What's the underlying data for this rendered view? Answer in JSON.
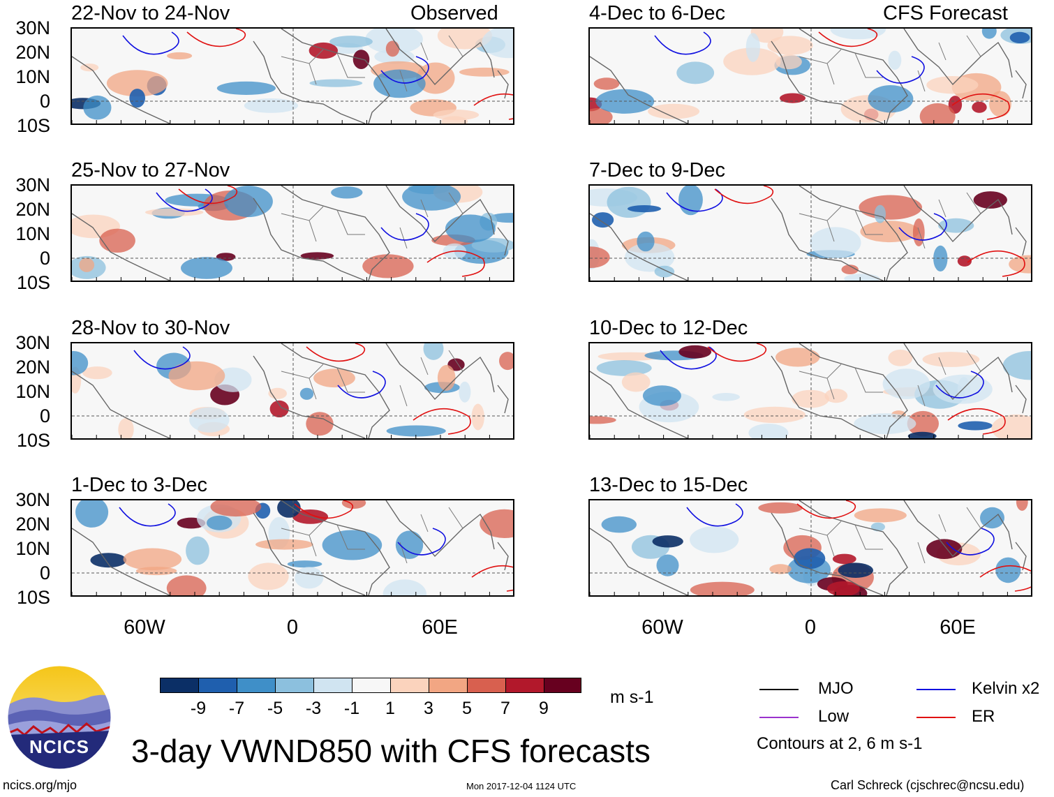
{
  "panels_left": [
    {
      "title": "22-Nov to 24-Nov",
      "tag": "Observed"
    },
    {
      "title": "25-Nov to 27-Nov",
      "tag": ""
    },
    {
      "title": "28-Nov to 30-Nov",
      "tag": ""
    },
    {
      "title": "1-Dec to 3-Dec",
      "tag": ""
    }
  ],
  "panels_right": [
    {
      "title": "4-Dec to 6-Dec",
      "tag": "CFS Forecast"
    },
    {
      "title": "7-Dec to 9-Dec",
      "tag": ""
    },
    {
      "title": "10-Dec to 12-Dec",
      "tag": ""
    },
    {
      "title": "13-Dec to 15-Dec",
      "tag": ""
    }
  ],
  "lat_labels": [
    "30N",
    "20N",
    "10N",
    "0",
    "10S"
  ],
  "lon_labels": [
    "60W",
    "0",
    "60E"
  ],
  "colorbar": {
    "colors": [
      "#0b2f66",
      "#1f5fae",
      "#3f8fc8",
      "#8cc0de",
      "#d0e4f1",
      "#f7f7f7",
      "#fbd3bd",
      "#f2a683",
      "#d8604f",
      "#b2182b",
      "#67001f"
    ],
    "labels": [
      "-9",
      "-7",
      "-5",
      "-3",
      "-1",
      "1",
      "3",
      "5",
      "7",
      "9"
    ],
    "units": "m s-1"
  },
  "legend": {
    "items": [
      {
        "label": "MJO",
        "color": "#000000"
      },
      {
        "label": "Kelvin x2",
        "color": "#1010e0"
      },
      {
        "label": "Low",
        "color": "#9a32cd"
      },
      {
        "label": "ER",
        "color": "#e01010"
      }
    ],
    "contours_note": "Contours at 2, 6 m s-1"
  },
  "logo_text": "NCICS",
  "main_title": "3-day VWND850 with CFS forecasts",
  "footer": {
    "left": "ncics.org/mjo",
    "center": "Mon 2017-12-04 1124 UTC",
    "right": "Carl Schreck (cjschrec@ncsu.edu)"
  }
}
